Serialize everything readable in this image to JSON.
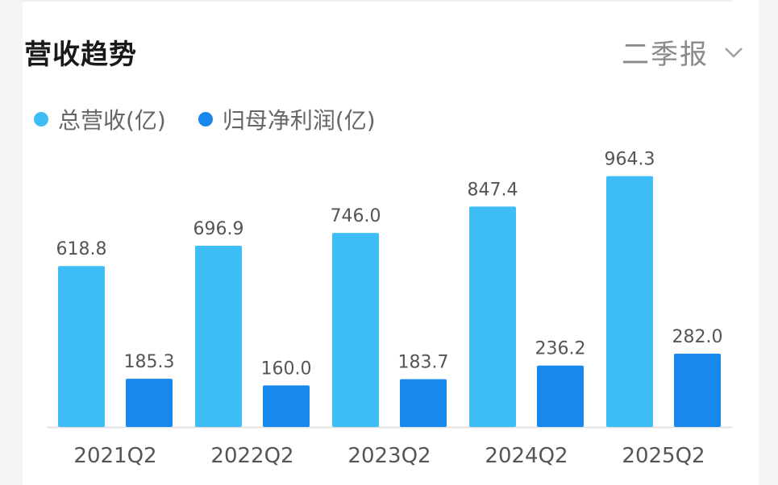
{
  "header": {
    "title": "营收趋势",
    "period_label": "二季报"
  },
  "colors": {
    "revenue": "#3ebdf7",
    "profit": "#1888ec",
    "axis": "#e3e3e3",
    "label": "#555555"
  },
  "chart_data": {
    "type": "bar",
    "categories": [
      "2021Q2",
      "2022Q2",
      "2023Q2",
      "2024Q2",
      "2025Q2"
    ],
    "series": [
      {
        "name": "总营收(亿)",
        "values": [
          618.8,
          696.9,
          746.0,
          847.4,
          964.3
        ],
        "labels": [
          "618.8",
          "696.9",
          "746.0",
          "847.4",
          "964.3"
        ]
      },
      {
        "name": "归母净利润(亿)",
        "values": [
          185.3,
          160.0,
          183.7,
          236.2,
          282.0
        ],
        "labels": [
          "185.3",
          "160.0",
          "183.7",
          "236.2",
          "282.0"
        ]
      }
    ],
    "title": "",
    "xlabel": "",
    "ylabel": "",
    "grid": false,
    "legend": "top-left"
  }
}
